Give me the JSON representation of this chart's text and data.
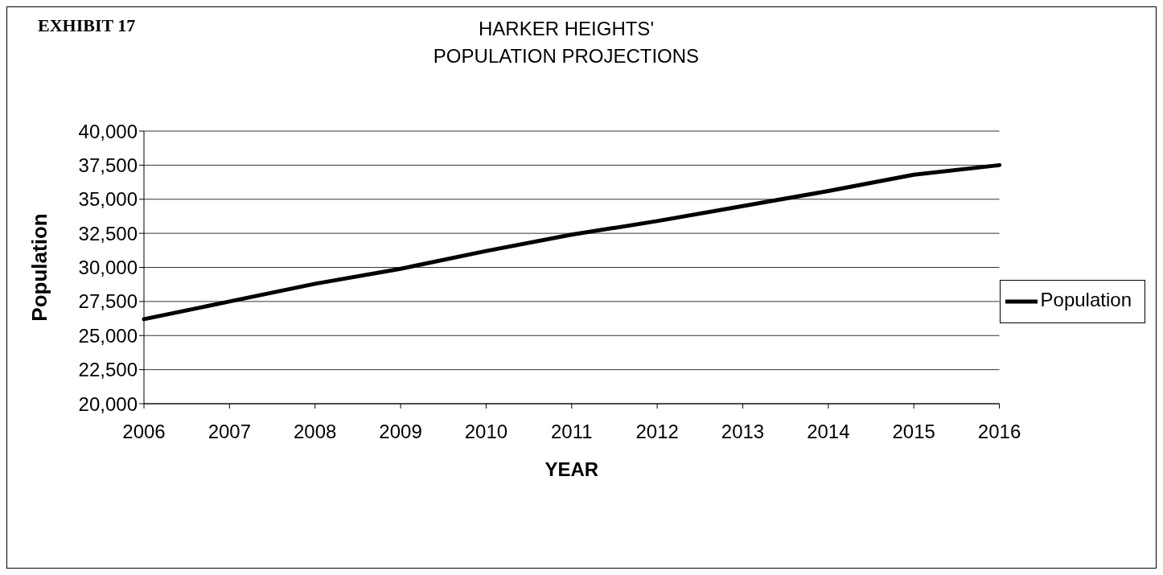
{
  "chart_data": {
    "type": "line",
    "title": "HARKER HEIGHTS'\nPOPULATION PROJECTIONS",
    "annotations": [
      "EXHIBIT 17"
    ],
    "xlabel": "YEAR",
    "ylabel": "Population",
    "categories": [
      "2006",
      "2007",
      "2008",
      "2009",
      "2010",
      "2011",
      "2012",
      "2013",
      "2014",
      "2015",
      "2016"
    ],
    "series": [
      {
        "name": "Population",
        "color": "#000000",
        "values": [
          26200,
          27500,
          28800,
          29900,
          31200,
          32400,
          33400,
          34500,
          35600,
          36800,
          37500
        ]
      }
    ],
    "ylim": [
      20000,
      40000
    ],
    "yticks": [
      {
        "value": 20000,
        "label": "20,000"
      },
      {
        "value": 22500,
        "label": "22,500"
      },
      {
        "value": 25000,
        "label": "25,000"
      },
      {
        "value": 27500,
        "label": "27,500"
      },
      {
        "value": 30000,
        "label": "30,000"
      },
      {
        "value": 32500,
        "label": "32,500"
      },
      {
        "value": 35000,
        "label": "35,000"
      },
      {
        "value": 37500,
        "label": "37,500"
      },
      {
        "value": 40000,
        "label": "40,000"
      }
    ],
    "grid": "y",
    "legend": "right",
    "marker": "none",
    "line_style": "solid"
  }
}
